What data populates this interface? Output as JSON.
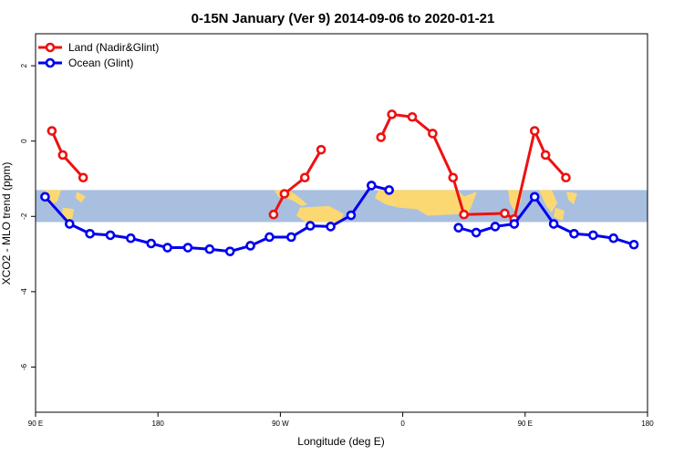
{
  "chart_data": {
    "type": "line",
    "title": "0-15N January (Ver 9)   2014-09-06 to 2020-01-21",
    "xlabel": "Longitude (deg E)",
    "ylabel": "XCO2 - MLO trend (ppm)",
    "xlim": [
      90,
      540
    ],
    "ylim": [
      -7.2,
      2.85
    ],
    "x_ticks": [
      {
        "value": 90,
        "label": "90 E"
      },
      {
        "value": 180,
        "label": "180"
      },
      {
        "value": 270,
        "label": "90 W"
      },
      {
        "value": 360,
        "label": "0"
      },
      {
        "value": 450,
        "label": "90 E"
      },
      {
        "value": 540,
        "label": "180"
      }
    ],
    "y_ticks": [
      {
        "value": 2,
        "label": "2"
      },
      {
        "value": 0,
        "label": "0"
      },
      {
        "value": -2,
        "label": "-2"
      },
      {
        "value": -4,
        "label": "-4"
      },
      {
        "value": -6,
        "label": "-6"
      }
    ],
    "map_band": {
      "lat_range": "0-15N",
      "y_range": [
        -2.15,
        -1.3
      ],
      "ocean_color": "#a9bfdf",
      "land_color": "#fbd872"
    },
    "legend": {
      "position": "top-left"
    },
    "series": [
      {
        "name": "Land (Nadir&Glint)",
        "color": "#ee1111",
        "segments": [
          [
            [
              102,
              0.27
            ],
            [
              110,
              -0.37
            ],
            [
              125,
              -0.97
            ]
          ],
          [
            [
              265,
              -1.95
            ],
            [
              273,
              -1.4
            ],
            [
              288,
              -0.97
            ],
            [
              300,
              -0.23
            ]
          ],
          [
            [
              344,
              0.1
            ],
            [
              352,
              0.71
            ],
            [
              367,
              0.64
            ],
            [
              382,
              0.2
            ],
            [
              397,
              -0.97
            ],
            [
              405,
              -1.95
            ],
            [
              435,
              -1.92
            ],
            [
              442,
              -2.07
            ],
            [
              457,
              0.27
            ],
            [
              465,
              -0.37
            ],
            [
              480,
              -0.97
            ]
          ]
        ]
      },
      {
        "name": "Ocean (Glint)",
        "color": "#0000ee",
        "segments": [
          [
            [
              97,
              -1.48
            ],
            [
              115,
              -2.2
            ],
            [
              130,
              -2.46
            ],
            [
              145,
              -2.5
            ],
            [
              160,
              -2.58
            ],
            [
              175,
              -2.72
            ],
            [
              187,
              -2.83
            ],
            [
              202,
              -2.83
            ],
            [
              218,
              -2.87
            ],
            [
              233,
              -2.93
            ],
            [
              248,
              -2.78
            ],
            [
              262,
              -2.55
            ],
            [
              278,
              -2.55
            ],
            [
              292,
              -2.25
            ],
            [
              307,
              -2.27
            ],
            [
              322,
              -1.97
            ],
            [
              337,
              -1.18
            ],
            [
              350,
              -1.3
            ]
          ],
          [
            [
              401,
              -2.3
            ],
            [
              414,
              -2.43
            ],
            [
              428,
              -2.27
            ],
            [
              442,
              -2.2
            ],
            [
              457,
              -1.48
            ],
            [
              471,
              -2.2
            ],
            [
              486,
              -2.46
            ],
            [
              500,
              -2.5
            ],
            [
              515,
              -2.58
            ],
            [
              530,
              -2.75
            ]
          ]
        ]
      }
    ]
  }
}
